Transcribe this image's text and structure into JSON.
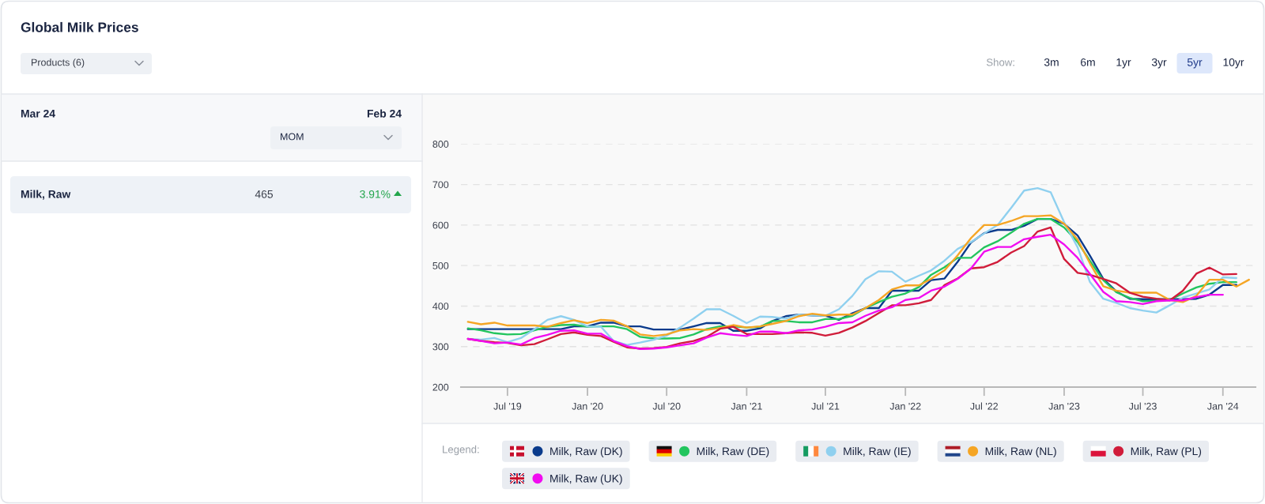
{
  "chart_data": [
    {
      "type": "other",
      "title": "Global Milk Prices",
      "annotations": [
        "Products (6)",
        "Mar 24",
        "Feb 24",
        "MOM",
        "Milk, Raw",
        "465",
        "3.91%"
      ]
    },
    {
      "type": "line",
      "annotations": [
        "Show:",
        "3m",
        "6m",
        "1yr",
        "3yr",
        "5yr",
        "10yr"
      ],
      "legend_title": "Legend:",
      "legend": "bottom",
      "grid": "y",
      "x": [
        "2019-04",
        "2019-05",
        "2019-06",
        "2019-07",
        "2019-08",
        "2019-09",
        "2019-10",
        "2019-11",
        "2019-12",
        "2020-01",
        "2020-02",
        "2020-03",
        "2020-04",
        "2020-05",
        "2020-06",
        "2020-07",
        "2020-08",
        "2020-09",
        "2020-10",
        "2020-11",
        "2020-12",
        "2021-01",
        "2021-02",
        "2021-03",
        "2021-04",
        "2021-05",
        "2021-06",
        "2021-07",
        "2021-08",
        "2021-09",
        "2021-10",
        "2021-11",
        "2021-12",
        "2022-01",
        "2022-02",
        "2022-03",
        "2022-04",
        "2022-05",
        "2022-06",
        "2022-07",
        "2022-08",
        "2022-09",
        "2022-10",
        "2022-11",
        "2022-12",
        "2023-01",
        "2023-02",
        "2023-03",
        "2023-04",
        "2023-05",
        "2023-06",
        "2023-07",
        "2023-08",
        "2023-09",
        "2023-10",
        "2023-11",
        "2023-12",
        "2024-01",
        "2024-02",
        "2024-03"
      ],
      "xlim": [
        "2019-03-16",
        "2024-03-16"
      ],
      "xticks": [
        {
          "value": "2019-07",
          "label": "Jul '19"
        },
        {
          "value": "2020-01",
          "label": "Jan '20"
        },
        {
          "value": "2020-07",
          "label": "Jul '20"
        },
        {
          "value": "2021-01",
          "label": "Jan '21"
        },
        {
          "value": "2021-07",
          "label": "Jul '21"
        },
        {
          "value": "2022-01",
          "label": "Jan '22"
        },
        {
          "value": "2022-07",
          "label": "Jul '22"
        },
        {
          "value": "2023-01",
          "label": "Jan '23"
        },
        {
          "value": "2023-07",
          "label": "Jul '23"
        },
        {
          "value": "2024-01",
          "label": "Jan '24"
        }
      ],
      "ylim": [
        200,
        800
      ],
      "yticks": [
        200,
        300,
        400,
        500,
        600,
        700,
        800
      ],
      "series": [
        {
          "name": "Milk, Raw (DK)",
          "color": "#0b3b8c",
          "values": [
            343,
            343,
            343,
            343,
            343,
            343,
            343,
            343,
            350,
            350,
            359,
            359,
            350,
            350,
            342,
            342,
            342,
            350,
            358,
            358,
            339,
            339,
            345,
            363,
            375,
            379,
            377,
            376,
            366,
            382,
            395,
            395,
            438,
            438,
            438,
            464,
            468,
            509,
            557,
            580,
            588,
            588,
            598,
            615,
            615,
            603,
            574,
            525,
            467,
            436,
            418,
            417,
            417,
            417,
            417,
            418,
            428,
            452,
            452,
            null
          ]
        },
        {
          "name": "Milk, Raw (DE)",
          "color": "#22c55e",
          "values": [
            345,
            340,
            333,
            330,
            331,
            340,
            349,
            353,
            354,
            349,
            350,
            350,
            343,
            324,
            320,
            320,
            321,
            330,
            343,
            350,
            350,
            347,
            349,
            363,
            363,
            360,
            360,
            368,
            368,
            376,
            395,
            410,
            423,
            431,
            447,
            477,
            496,
            519,
            519,
            545,
            560,
            581,
            603,
            615,
            615,
            594,
            558,
            512,
            464,
            434,
            420,
            412,
            413,
            415,
            431,
            446,
            455,
            459,
            459,
            null
          ]
        },
        {
          "name": "Milk, Raw (IE)",
          "color": "#8fd0ef",
          "values": [
            319,
            317,
            321,
            311,
            321,
            343,
            366,
            375,
            366,
            350,
            349,
            314,
            304,
            310,
            317,
            327,
            347,
            369,
            392,
            392,
            376,
            358,
            374,
            373,
            369,
            379,
            377,
            376,
            392,
            425,
            466,
            486,
            485,
            460,
            475,
            488,
            512,
            541,
            558,
            579,
            600,
            642,
            685,
            691,
            681,
            607,
            545,
            460,
            418,
            408,
            395,
            389,
            384,
            402,
            421,
            431,
            441,
            471,
            469,
            null
          ]
        },
        {
          "name": "Milk, Raw (NL)",
          "color": "#f5a524",
          "values": [
            361,
            355,
            359,
            352,
            352,
            352,
            349,
            358,
            365,
            358,
            366,
            364,
            350,
            330,
            326,
            330,
            340,
            343,
            341,
            346,
            353,
            347,
            350,
            356,
            363,
            375,
            381,
            377,
            379,
            379,
            395,
            415,
            441,
            451,
            451,
            467,
            488,
            525,
            568,
            600,
            600,
            610,
            622,
            622,
            624,
            603,
            564,
            506,
            449,
            438,
            433,
            433,
            433,
            415,
            410,
            425,
            465,
            465,
            448,
            465
          ]
        },
        {
          "name": "Milk, Raw (PL)",
          "color": "#d01c3a",
          "values": [
            319,
            314,
            311,
            309,
            303,
            306,
            318,
            331,
            335,
            329,
            326,
            312,
            298,
            295,
            296,
            299,
            308,
            314,
            324,
            344,
            349,
            331,
            331,
            331,
            333,
            335,
            334,
            327,
            334,
            347,
            363,
            383,
            402,
            402,
            407,
            415,
            452,
            468,
            493,
            496,
            509,
            532,
            548,
            584,
            594,
            516,
            482,
            477,
            467,
            456,
            433,
            423,
            418,
            414,
            438,
            480,
            495,
            478,
            479,
            null
          ]
        },
        {
          "name": "Milk, Raw (UK)",
          "color": "#f10cf0",
          "values": [
            319,
            314,
            308,
            310,
            305,
            321,
            329,
            339,
            340,
            332,
            332,
            314,
            301,
            294,
            295,
            298,
            303,
            308,
            322,
            333,
            329,
            326,
            337,
            337,
            333,
            340,
            342,
            349,
            358,
            360,
            376,
            389,
            397,
            415,
            420,
            438,
            448,
            467,
            493,
            534,
            546,
            546,
            565,
            571,
            576,
            552,
            519,
            480,
            435,
            412,
            410,
            405,
            412,
            414,
            414,
            422,
            428,
            428,
            null,
            null
          ]
        }
      ]
    }
  ]
}
